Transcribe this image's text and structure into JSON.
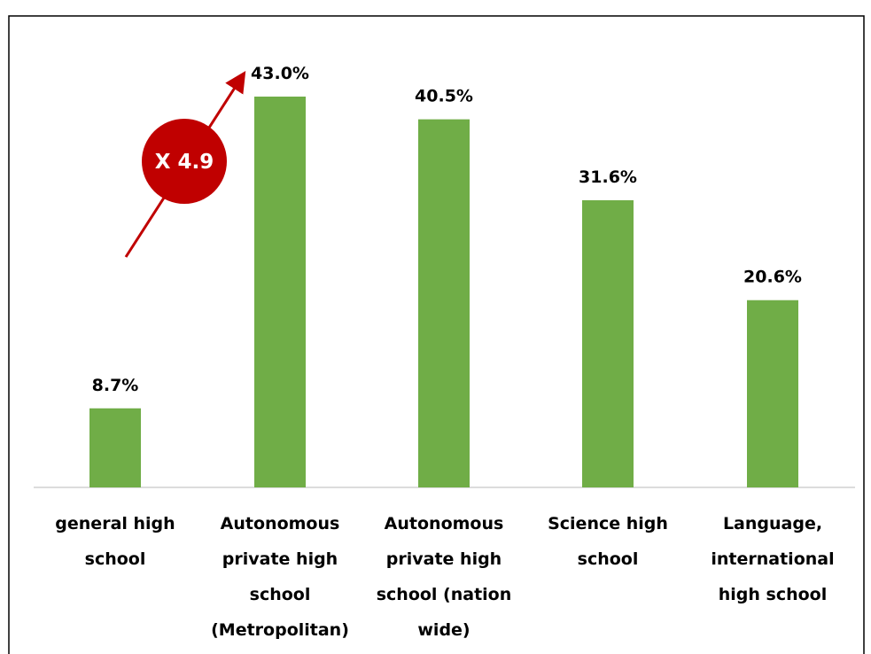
{
  "chart_data": {
    "type": "bar",
    "categories": [
      "general high\nschool",
      "Autonomous\nprivate high\nschool\n(Metropolitan)",
      "Autonomous\nprivate high\nschool (nation\nwide)",
      "Science high\nschool",
      "Language,\ninternational\nhigh school"
    ],
    "values": [
      8.7,
      43.0,
      40.5,
      31.6,
      20.6
    ],
    "value_labels": [
      "8.7%",
      "43.0%",
      "40.5%",
      "31.6%",
      "20.6%"
    ],
    "color": "#70ad47",
    "annotation": "X 4.9",
    "annotation_color": "#c00000"
  }
}
